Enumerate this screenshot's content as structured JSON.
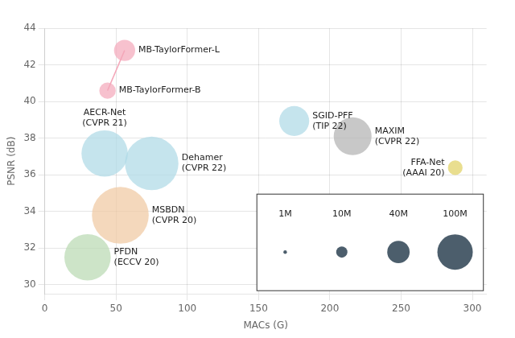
{
  "chart_data": {
    "type": "bubble",
    "xlabel": "MACs (G)",
    "ylabel": "PSNR (dB)",
    "xlim": [
      0,
      310
    ],
    "ylim": [
      29.5,
      44
    ],
    "xticks": [
      0,
      50,
      100,
      150,
      200,
      250,
      300
    ],
    "yticks": [
      30,
      32,
      34,
      36,
      38,
      40,
      42,
      44
    ],
    "grid": true,
    "labels": [
      "MB-TaylorFormer-L",
      "MB-TaylorFormer-B",
      "AECR-Net\n(CVPR 21)",
      "Dehamer\n(CVPR 22)",
      "SGID-PFF\n(TIP 22)",
      "MAXIM\n(CVPR 22)",
      "FFA-Net\n(AAAI 20)",
      "MSBDN\n(CVPR 20)",
      "PFDN\n(ECCV 20)"
    ],
    "x": [
      56,
      44,
      42,
      75,
      175,
      216,
      288,
      53,
      30
    ],
    "values": [
      42.8,
      40.6,
      37.17,
      36.63,
      38.94,
      38.11,
      36.39,
      33.79,
      31.5
    ],
    "sizes": [
      2.5,
      1.5,
      12,
      16,
      5,
      8,
      1.2,
      18,
      12
    ],
    "colors": [
      "#f4a7b9",
      "#f4a7b9",
      "#add8e6",
      "#add8e6",
      "#add8e6",
      "#b0b0b0",
      "#e0d060",
      "#f0c8a0",
      "#b8d8b0"
    ],
    "line": {
      "x": [
        44,
        56
      ],
      "values": [
        40.6,
        42.8
      ],
      "color": "#f4a7b9"
    },
    "size_legend": {
      "color": "#3d5060",
      "items": [
        {
          "label": "1M",
          "size": 1
        },
        {
          "label": "10M",
          "size": 10
        },
        {
          "label": "40M",
          "size": 40
        },
        {
          "label": "100M",
          "size": 100
        }
      ]
    }
  }
}
